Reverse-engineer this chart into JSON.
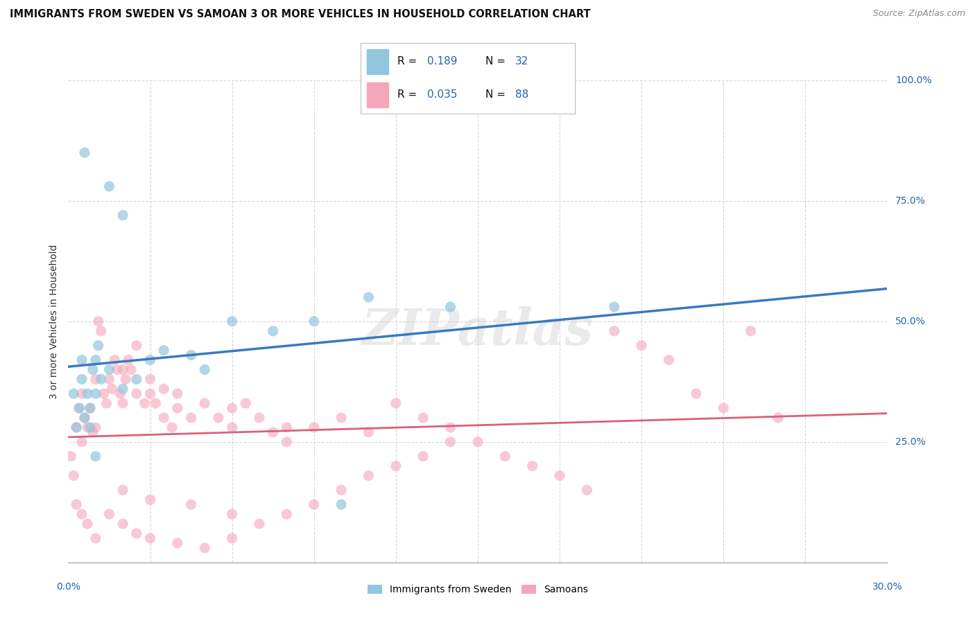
{
  "title": "IMMIGRANTS FROM SWEDEN VS SAMOAN 3 OR MORE VEHICLES IN HOUSEHOLD CORRELATION CHART",
  "source": "Source: ZipAtlas.com",
  "ylabel_label": "3 or more Vehicles in Household",
  "legend_label1": "Immigrants from Sweden",
  "legend_label2": "Samoans",
  "R1": 0.189,
  "N1": 32,
  "R2": 0.035,
  "N2": 88,
  "color_blue": "#92c5de",
  "color_pink": "#f4a6ba",
  "color_blue_line": "#3a7abf",
  "color_pink_line": "#d9607a",
  "color_text_blue": "#2166ac",
  "watermark": "ZIPatlas",
  "sweden_x": [
    0.2,
    0.3,
    0.4,
    0.5,
    0.5,
    0.6,
    0.7,
    0.8,
    0.8,
    0.9,
    1.0,
    1.0,
    1.1,
    1.2,
    1.5,
    2.0,
    2.5,
    3.0,
    3.5,
    4.5,
    5.0,
    6.0,
    7.5,
    9.0,
    11.0,
    14.0,
    20.0,
    0.6,
    1.5,
    2.0,
    10.0,
    1.0
  ],
  "sweden_y": [
    35.0,
    28.0,
    32.0,
    42.0,
    38.0,
    30.0,
    35.0,
    32.0,
    28.0,
    40.0,
    35.0,
    42.0,
    45.0,
    38.0,
    40.0,
    36.0,
    38.0,
    42.0,
    44.0,
    43.0,
    40.0,
    50.0,
    48.0,
    50.0,
    55.0,
    53.0,
    53.0,
    85.0,
    78.0,
    72.0,
    12.0,
    22.0
  ],
  "samoan_x": [
    0.1,
    0.2,
    0.3,
    0.4,
    0.5,
    0.5,
    0.6,
    0.7,
    0.8,
    0.9,
    1.0,
    1.0,
    1.1,
    1.2,
    1.3,
    1.4,
    1.5,
    1.6,
    1.7,
    1.8,
    1.9,
    2.0,
    2.0,
    2.1,
    2.2,
    2.3,
    2.5,
    2.5,
    2.8,
    3.0,
    3.0,
    3.2,
    3.5,
    3.5,
    3.8,
    4.0,
    4.0,
    4.5,
    5.0,
    5.5,
    6.0,
    6.0,
    6.5,
    7.0,
    7.5,
    8.0,
    9.0,
    10.0,
    11.0,
    12.0,
    13.0,
    14.0,
    15.0,
    16.0,
    17.0,
    18.0,
    19.0,
    20.0,
    21.0,
    22.0,
    23.0,
    24.0,
    25.0,
    26.0,
    0.3,
    0.5,
    0.7,
    1.0,
    1.5,
    2.0,
    2.5,
    3.0,
    4.0,
    5.0,
    6.0,
    7.0,
    8.0,
    9.0,
    10.0,
    11.0,
    12.0,
    13.0,
    14.0,
    2.0,
    3.0,
    4.5,
    6.0,
    8.0
  ],
  "samoan_y": [
    22.0,
    18.0,
    28.0,
    32.0,
    35.0,
    25.0,
    30.0,
    28.0,
    32.0,
    27.0,
    38.0,
    28.0,
    50.0,
    48.0,
    35.0,
    33.0,
    38.0,
    36.0,
    42.0,
    40.0,
    35.0,
    33.0,
    40.0,
    38.0,
    42.0,
    40.0,
    45.0,
    35.0,
    33.0,
    38.0,
    35.0,
    33.0,
    36.0,
    30.0,
    28.0,
    32.0,
    35.0,
    30.0,
    33.0,
    30.0,
    28.0,
    32.0,
    33.0,
    30.0,
    27.0,
    25.0,
    28.0,
    30.0,
    27.0,
    33.0,
    30.0,
    28.0,
    25.0,
    22.0,
    20.0,
    18.0,
    15.0,
    48.0,
    45.0,
    42.0,
    35.0,
    32.0,
    48.0,
    30.0,
    12.0,
    10.0,
    8.0,
    5.0,
    10.0,
    8.0,
    6.0,
    5.0,
    4.0,
    3.0,
    5.0,
    8.0,
    10.0,
    12.0,
    15.0,
    18.0,
    20.0,
    22.0,
    25.0,
    15.0,
    13.0,
    12.0,
    10.0,
    28.0
  ]
}
